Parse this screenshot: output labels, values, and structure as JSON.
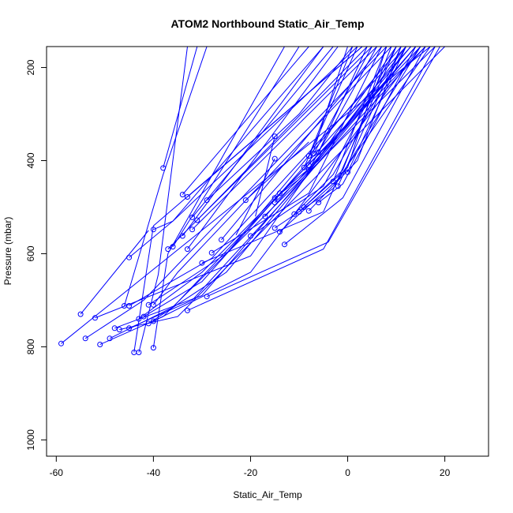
{
  "chart_data": {
    "type": "line",
    "title": "ATOM2 Northbound Static_Air_Temp",
    "xlabel": "Static_Air_Temp",
    "ylabel": "Pressure (mbar)",
    "xlim": [
      -62,
      29
    ],
    "ylim": [
      1035,
      155
    ],
    "y_reversed": true,
    "xticks": [
      -60,
      -40,
      -20,
      0,
      20
    ],
    "yticks": [
      200,
      400,
      600,
      800,
      1000
    ],
    "grid": false,
    "legend": "none",
    "colors": {
      "series": "#0000ff",
      "axes": "#000000"
    },
    "marker": "open-circle-at-profile-start",
    "series": [
      {
        "points": [
          [
            -59,
            793
          ],
          [
            17,
            155
          ]
        ]
      },
      {
        "points": [
          [
            -54,
            782
          ],
          [
            -42,
            700
          ],
          [
            8,
            155
          ]
        ]
      },
      {
        "points": [
          [
            -51,
            795
          ],
          [
            -38,
            735
          ],
          [
            18,
            155
          ]
        ]
      },
      {
        "points": [
          [
            -49,
            782
          ],
          [
            -36,
            715
          ],
          [
            15,
            155
          ]
        ]
      },
      {
        "points": [
          [
            -48,
            760
          ],
          [
            -30,
            690
          ],
          [
            14,
            155
          ]
        ]
      },
      {
        "points": [
          [
            -47,
            763
          ],
          [
            -35,
            735
          ],
          [
            20,
            155
          ]
        ]
      },
      {
        "points": [
          [
            -45,
            760
          ],
          [
            -32,
            700
          ],
          [
            16,
            155
          ]
        ]
      },
      {
        "points": [
          [
            -44,
            812
          ],
          [
            -40,
            540
          ],
          [
            3,
            155
          ]
        ]
      },
      {
        "points": [
          [
            -43,
            812
          ],
          [
            -39,
            645
          ],
          [
            -33,
            155
          ]
        ]
      },
      {
        "points": [
          [
            -40,
            802
          ],
          [
            -37,
            600
          ],
          [
            -13,
            155
          ]
        ]
      },
      {
        "points": [
          [
            -46,
            712
          ],
          [
            -38,
            430
          ],
          [
            -29,
            155
          ]
        ]
      },
      {
        "points": [
          [
            -55,
            730
          ],
          [
            -41,
            550
          ]
        ]
      },
      {
        "points": [
          [
            -52,
            738
          ],
          [
            -20,
            605
          ],
          [
            10,
            155
          ]
        ]
      },
      {
        "points": [
          [
            -45,
            712
          ],
          [
            -28,
            610
          ],
          [
            12,
            155
          ]
        ]
      },
      {
        "points": [
          [
            -42,
            735
          ],
          [
            -30,
            660
          ],
          [
            13,
            155
          ]
        ]
      },
      {
        "points": [
          [
            -41,
            710
          ],
          [
            -25,
            600
          ],
          [
            11,
            155
          ]
        ]
      },
      {
        "points": [
          [
            -40,
            710
          ],
          [
            -35,
            640
          ],
          [
            9,
            155
          ]
        ]
      },
      {
        "points": [
          [
            -41,
            750
          ],
          [
            -25,
            640
          ],
          [
            14,
            155
          ]
        ]
      },
      {
        "points": [
          [
            -40,
            745
          ],
          [
            -20,
            640
          ],
          [
            15,
            155
          ]
        ]
      },
      {
        "points": [
          [
            -43,
            740
          ],
          [
            -30,
            640
          ],
          [
            16,
            155
          ]
        ]
      },
      {
        "points": [
          [
            -38,
            416
          ],
          [
            -31,
            155
          ]
        ]
      },
      {
        "points": [
          [
            -45,
            608
          ],
          [
            -36,
            530
          ],
          [
            -5,
            155
          ]
        ]
      },
      {
        "points": [
          [
            -40,
            548
          ],
          [
            -36,
            530
          ],
          [
            2,
            155
          ]
        ]
      },
      {
        "points": [
          [
            -37,
            590
          ],
          [
            5,
            155
          ]
        ]
      },
      {
        "points": [
          [
            -36,
            585
          ],
          [
            -10,
            155
          ]
        ]
      },
      {
        "points": [
          [
            -34,
            562
          ],
          [
            -5,
            155
          ]
        ]
      },
      {
        "points": [
          [
            -33,
            590
          ],
          [
            -2,
            155
          ]
        ]
      },
      {
        "points": [
          [
            -34,
            473
          ],
          [
            -8,
            155
          ]
        ]
      },
      {
        "points": [
          [
            -33,
            478
          ],
          [
            3,
            155
          ]
        ]
      },
      {
        "points": [
          [
            -32,
            522
          ],
          [
            -3,
            155
          ]
        ]
      },
      {
        "points": [
          [
            -32,
            548
          ],
          [
            6,
            155
          ]
        ]
      },
      {
        "points": [
          [
            -31,
            528
          ],
          [
            4,
            155
          ]
        ]
      },
      {
        "points": [
          [
            -33,
            722
          ],
          [
            -5,
            590
          ],
          [
            18,
            155
          ]
        ]
      },
      {
        "points": [
          [
            -29,
            692
          ],
          [
            -4,
            575
          ],
          [
            19,
            155
          ]
        ]
      },
      {
        "points": [
          [
            -30,
            620
          ],
          [
            -5,
            510
          ],
          [
            10,
            155
          ]
        ]
      },
      {
        "points": [
          [
            -28,
            598
          ],
          [
            -8,
            470
          ],
          [
            7,
            155
          ]
        ]
      },
      {
        "points": [
          [
            -26,
            570
          ],
          [
            7,
            155
          ]
        ]
      },
      {
        "points": [
          [
            -29,
            485
          ],
          [
            -10,
            300
          ],
          [
            1,
            155
          ]
        ]
      },
      {
        "points": [
          [
            -21,
            485
          ],
          [
            -8,
            360
          ]
        ]
      },
      {
        "points": [
          [
            -20,
            562
          ],
          [
            -5,
            455
          ],
          [
            10,
            155
          ]
        ]
      },
      {
        "points": [
          [
            -17,
            520
          ],
          [
            -12,
            460
          ]
        ]
      },
      {
        "points": [
          [
            -15,
            348
          ],
          [
            -19,
            520
          ]
        ]
      },
      {
        "points": [
          [
            -15,
            396
          ],
          [
            -23,
            560
          ]
        ]
      },
      {
        "points": [
          [
            -15,
            480
          ],
          [
            -10,
            440
          ],
          [
            14,
            155
          ]
        ]
      },
      {
        "points": [
          [
            -15,
            490
          ],
          [
            -8,
            420
          ],
          [
            13,
            155
          ]
        ]
      },
      {
        "points": [
          [
            -14,
            470
          ],
          [
            -6,
            400
          ],
          [
            12,
            155
          ]
        ]
      },
      {
        "points": [
          [
            -15,
            545
          ],
          [
            -3,
            460
          ],
          [
            15,
            155
          ]
        ]
      },
      {
        "points": [
          [
            -14,
            553
          ],
          [
            -2,
            440
          ],
          [
            17,
            155
          ]
        ]
      },
      {
        "points": [
          [
            -13,
            580
          ],
          [
            -1,
            480
          ],
          [
            16,
            155
          ]
        ]
      },
      {
        "points": [
          [
            -11,
            515
          ],
          [
            -3,
            430
          ],
          [
            12,
            155
          ]
        ]
      },
      {
        "points": [
          [
            -10,
            510
          ],
          [
            -1,
            420
          ],
          [
            9,
            155
          ]
        ]
      },
      {
        "points": [
          [
            -9,
            500
          ],
          [
            0,
            415
          ],
          [
            8,
            155
          ]
        ]
      },
      {
        "points": [
          [
            -8,
            508
          ],
          [
            2,
            400
          ],
          [
            11,
            155
          ]
        ]
      },
      {
        "points": [
          [
            -9,
            415
          ],
          [
            2,
            155
          ]
        ]
      },
      {
        "points": [
          [
            -8,
            410
          ],
          [
            0,
            155
          ]
        ]
      },
      {
        "points": [
          [
            -8,
            390
          ],
          [
            1,
            155
          ]
        ]
      },
      {
        "points": [
          [
            -7,
            385
          ],
          [
            5,
            155
          ]
        ]
      },
      {
        "points": [
          [
            -6,
            382
          ],
          [
            4,
            155
          ]
        ]
      },
      {
        "points": [
          [
            -8,
            420
          ],
          [
            6,
            155
          ]
        ]
      },
      {
        "points": [
          [
            -3,
            445
          ],
          [
            8,
            155
          ]
        ]
      },
      {
        "points": [
          [
            -2,
            455
          ],
          [
            11,
            155
          ]
        ]
      },
      {
        "points": [
          [
            0,
            425
          ],
          [
            12,
            155
          ]
        ]
      },
      {
        "points": [
          [
            -6,
            490
          ],
          [
            -1,
            450
          ],
          [
            14,
            155
          ]
        ]
      }
    ]
  }
}
